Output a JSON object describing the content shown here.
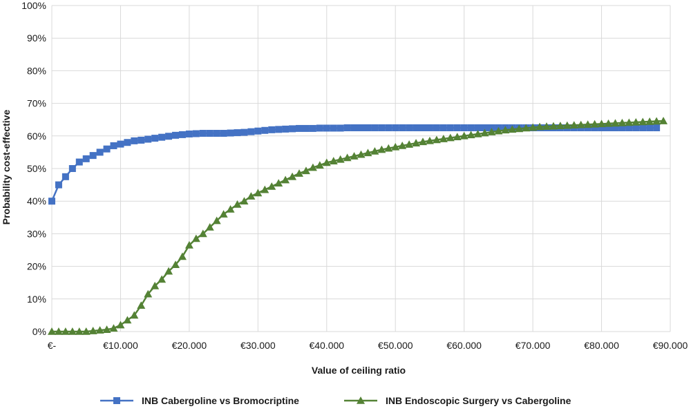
{
  "chart_data": {
    "type": "line",
    "title": "",
    "xlabel": "Value of ceiling ratio",
    "ylabel": "Probability cost-effective",
    "xlim": [
      0,
      90000
    ],
    "ylim": [
      0,
      100
    ],
    "grid": true,
    "legend_position": "bottom",
    "x_tick_values": [
      0,
      10000,
      20000,
      30000,
      40000,
      50000,
      60000,
      70000,
      80000,
      90000
    ],
    "x_tick_labels": [
      "€-",
      "€10.000",
      "€20.000",
      "€30.000",
      "€40.000",
      "€50.000",
      "€60.000",
      "€70.000",
      "€80.000",
      "€90.000"
    ],
    "y_tick_values": [
      0,
      10,
      20,
      30,
      40,
      50,
      60,
      70,
      80,
      90,
      100
    ],
    "y_tick_labels": [
      "0%",
      "10%",
      "20%",
      "30%",
      "40%",
      "50%",
      "60%",
      "70%",
      "80%",
      "90%",
      "100%"
    ],
    "x_step": 1000,
    "series": [
      {
        "name": "INB Cabergoline  vs Bromocriptine",
        "color": "#4472c4",
        "marker": "square",
        "values": [
          40,
          45,
          47.5,
          50,
          52,
          53,
          54,
          55,
          56,
          57,
          57.5,
          58,
          58.5,
          58.7,
          59,
          59.3,
          59.6,
          59.9,
          60.2,
          60.4,
          60.6,
          60.7,
          60.8,
          60.8,
          60.8,
          60.8,
          60.9,
          61,
          61.1,
          61.3,
          61.5,
          61.7,
          61.9,
          62,
          62.1,
          62.2,
          62.3,
          62.3,
          62.3,
          62.4,
          62.4,
          62.4,
          62.4,
          62.5,
          62.5,
          62.5,
          62.5,
          62.5,
          62.5,
          62.5,
          62.5,
          62.5,
          62.5,
          62.5,
          62.5,
          62.5,
          62.5,
          62.5,
          62.5,
          62.5,
          62.5,
          62.5,
          62.5,
          62.5,
          62.5,
          62.5,
          62.5,
          62.5,
          62.5,
          62.5,
          62.5,
          62.5,
          62.5,
          62.5,
          62.5,
          62.5,
          62.5,
          62.5,
          62.5,
          62.5,
          62.5,
          62.5,
          62.5,
          62.5,
          62.5,
          62.5,
          62.5,
          62.5,
          62.5
        ]
      },
      {
        "name": "INB Endoscopic Surgery vs Cabergoline",
        "color": "#548235",
        "marker": "triangle",
        "values": [
          0,
          0,
          0,
          0,
          0,
          0,
          0.2,
          0.4,
          0.6,
          1.0,
          2.0,
          3.5,
          5.0,
          8.0,
          11.5,
          14.0,
          16.0,
          18.5,
          20.5,
          23.0,
          26.5,
          28.5,
          30.0,
          32.0,
          34.0,
          36.0,
          37.5,
          39.0,
          40.0,
          41.5,
          42.5,
          43.5,
          44.5,
          45.5,
          46.5,
          47.5,
          48.5,
          49.3,
          50.3,
          51.0,
          51.8,
          52.3,
          52.8,
          53.3,
          53.8,
          54.3,
          54.8,
          55.3,
          55.8,
          56.2,
          56.6,
          57.0,
          57.4,
          57.8,
          58.2,
          58.5,
          58.8,
          59.1,
          59.4,
          59.7,
          60.0,
          60.3,
          60.6,
          60.9,
          61.2,
          61.5,
          61.8,
          62.0,
          62.2,
          62.4,
          62.6,
          62.8,
          62.9,
          63.0,
          63.1,
          63.2,
          63.3,
          63.4,
          63.5,
          63.6,
          63.7,
          63.8,
          63.9,
          64.0,
          64.1,
          64.2,
          64.3,
          64.4,
          64.5,
          64.6
        ]
      }
    ]
  }
}
